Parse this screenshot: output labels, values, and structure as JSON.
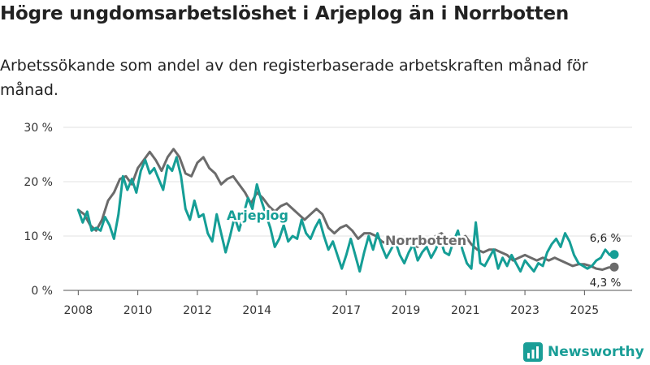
{
  "title": "Högre ungdomsarbetslöshet i Arjeplog än i Norrbotten",
  "subtitle": "Arbetssökande som andel av den registerbaserade arbetskraften månad för månad.",
  "brand": {
    "name": "Newsworthy",
    "icon": "newsworthy-logo-icon",
    "color": "#1a9e97"
  },
  "chart_data": {
    "type": "line",
    "title": "Högre ungdomsarbetslöshet i Arjeplog än i Norrbotten",
    "xlabel": "",
    "ylabel": "",
    "ylim": [
      0,
      30
    ],
    "xlim": [
      2007.5,
      2026.6
    ],
    "yticks": [
      0,
      10,
      20,
      30
    ],
    "ytick_labels": [
      "0 %",
      "10 %",
      "20 %",
      "30 %"
    ],
    "xticks": [
      2008,
      2010,
      2012,
      2014,
      2017,
      2019,
      2021,
      2023,
      2025
    ],
    "xtick_labels": [
      "2008",
      "2010",
      "2012",
      "2014",
      "2017",
      "2019",
      "2021",
      "2023",
      "2025"
    ],
    "grid": true,
    "series": [
      {
        "name": "Norrbotten",
        "color": "#6b6b6b",
        "label_text": "Norrbotten",
        "end_label": "4,3 %",
        "points": [
          [
            2008.0,
            14.8
          ],
          [
            2008.2,
            14.0
          ],
          [
            2008.4,
            12.0
          ],
          [
            2008.6,
            11.0
          ],
          [
            2008.8,
            13.0
          ],
          [
            2009.0,
            16.5
          ],
          [
            2009.2,
            18.0
          ],
          [
            2009.4,
            20.5
          ],
          [
            2009.6,
            21.0
          ],
          [
            2009.8,
            19.5
          ],
          [
            2010.0,
            22.5
          ],
          [
            2010.2,
            24.0
          ],
          [
            2010.4,
            25.5
          ],
          [
            2010.6,
            24.0
          ],
          [
            2010.8,
            22.0
          ],
          [
            2011.0,
            24.5
          ],
          [
            2011.2,
            26.0
          ],
          [
            2011.4,
            24.5
          ],
          [
            2011.6,
            21.5
          ],
          [
            2011.8,
            21.0
          ],
          [
            2012.0,
            23.5
          ],
          [
            2012.2,
            24.5
          ],
          [
            2012.4,
            22.5
          ],
          [
            2012.6,
            21.5
          ],
          [
            2012.8,
            19.5
          ],
          [
            2013.0,
            20.5
          ],
          [
            2013.2,
            21.0
          ],
          [
            2013.4,
            19.5
          ],
          [
            2013.6,
            18.0
          ],
          [
            2013.8,
            16.0
          ],
          [
            2014.0,
            18.0
          ],
          [
            2014.2,
            17.0
          ],
          [
            2014.4,
            15.5
          ],
          [
            2014.6,
            14.5
          ],
          [
            2014.8,
            15.5
          ],
          [
            2015.0,
            16.0
          ],
          [
            2015.2,
            15.0
          ],
          [
            2015.4,
            14.0
          ],
          [
            2015.6,
            13.0
          ],
          [
            2015.8,
            14.0
          ],
          [
            2016.0,
            15.0
          ],
          [
            2016.2,
            14.0
          ],
          [
            2016.4,
            11.5
          ],
          [
            2016.6,
            10.5
          ],
          [
            2016.8,
            11.5
          ],
          [
            2017.0,
            12.0
          ],
          [
            2017.2,
            11.0
          ],
          [
            2017.4,
            9.5
          ],
          [
            2017.6,
            10.5
          ],
          [
            2017.8,
            10.5
          ],
          [
            2018.0,
            10.0
          ],
          [
            2018.2,
            9.0
          ],
          [
            2018.4,
            8.5
          ],
          [
            2018.6,
            9.5
          ],
          [
            2018.8,
            9.0
          ],
          [
            2019.0,
            9.5
          ],
          [
            2019.2,
            8.5
          ],
          [
            2019.4,
            8.0
          ],
          [
            2019.6,
            9.0
          ],
          [
            2019.8,
            8.5
          ],
          [
            2020.0,
            10.0
          ],
          [
            2020.2,
            10.5
          ],
          [
            2020.4,
            9.5
          ],
          [
            2020.6,
            8.5
          ],
          [
            2020.8,
            9.5
          ],
          [
            2021.0,
            10.0
          ],
          [
            2021.2,
            8.5
          ],
          [
            2021.4,
            7.5
          ],
          [
            2021.6,
            7.0
          ],
          [
            2021.8,
            7.5
          ],
          [
            2022.0,
            7.5
          ],
          [
            2022.2,
            7.0
          ],
          [
            2022.4,
            6.5
          ],
          [
            2022.6,
            5.5
          ],
          [
            2022.8,
            6.0
          ],
          [
            2023.0,
            6.5
          ],
          [
            2023.2,
            6.0
          ],
          [
            2023.4,
            5.5
          ],
          [
            2023.6,
            6.0
          ],
          [
            2023.8,
            5.5
          ],
          [
            2024.0,
            6.0
          ],
          [
            2024.2,
            5.5
          ],
          [
            2024.4,
            5.0
          ],
          [
            2024.6,
            4.5
          ],
          [
            2024.8,
            4.8
          ],
          [
            2025.0,
            4.8
          ],
          [
            2025.2,
            4.5
          ],
          [
            2025.4,
            4.0
          ],
          [
            2025.6,
            3.8
          ],
          [
            2025.8,
            4.2
          ],
          [
            2026.0,
            4.3
          ]
        ]
      },
      {
        "name": "Arjeplog",
        "color": "#159e96",
        "label_text": "Arjeplog",
        "end_label": "6,6 %",
        "points": [
          [
            2008.0,
            14.8
          ],
          [
            2008.15,
            12.5
          ],
          [
            2008.3,
            14.5
          ],
          [
            2008.45,
            11.0
          ],
          [
            2008.6,
            11.5
          ],
          [
            2008.75,
            11.0
          ],
          [
            2008.9,
            13.5
          ],
          [
            2009.05,
            12.0
          ],
          [
            2009.2,
            9.5
          ],
          [
            2009.35,
            14.0
          ],
          [
            2009.5,
            21.0
          ],
          [
            2009.65,
            18.5
          ],
          [
            2009.8,
            20.5
          ],
          [
            2009.95,
            18.0
          ],
          [
            2010.1,
            22.0
          ],
          [
            2010.25,
            24.0
          ],
          [
            2010.4,
            21.5
          ],
          [
            2010.55,
            22.5
          ],
          [
            2010.7,
            20.5
          ],
          [
            2010.85,
            18.5
          ],
          [
            2011.0,
            23.0
          ],
          [
            2011.15,
            22.0
          ],
          [
            2011.3,
            24.5
          ],
          [
            2011.45,
            21.0
          ],
          [
            2011.6,
            15.0
          ],
          [
            2011.75,
            13.0
          ],
          [
            2011.9,
            16.5
          ],
          [
            2012.05,
            13.5
          ],
          [
            2012.2,
            14.0
          ],
          [
            2012.35,
            10.5
          ],
          [
            2012.5,
            9.0
          ],
          [
            2012.65,
            14.0
          ],
          [
            2012.8,
            10.5
          ],
          [
            2012.95,
            7.0
          ],
          [
            2013.1,
            10.0
          ],
          [
            2013.25,
            13.5
          ],
          [
            2013.4,
            11.0
          ],
          [
            2013.55,
            14.0
          ],
          [
            2013.7,
            17.0
          ],
          [
            2013.85,
            15.0
          ],
          [
            2014.0,
            19.5
          ],
          [
            2014.15,
            16.5
          ],
          [
            2014.3,
            14.0
          ],
          [
            2014.45,
            11.5
          ],
          [
            2014.6,
            8.0
          ],
          [
            2014.75,
            9.5
          ],
          [
            2014.9,
            12.0
          ],
          [
            2015.05,
            9.0
          ],
          [
            2015.2,
            10.0
          ],
          [
            2015.35,
            9.5
          ],
          [
            2015.5,
            13.0
          ],
          [
            2015.65,
            10.5
          ],
          [
            2015.8,
            9.5
          ],
          [
            2015.95,
            11.5
          ],
          [
            2016.1,
            13.0
          ],
          [
            2016.25,
            10.0
          ],
          [
            2016.4,
            7.5
          ],
          [
            2016.55,
            9.0
          ],
          [
            2016.7,
            6.5
          ],
          [
            2016.85,
            4.0
          ],
          [
            2017.0,
            6.5
          ],
          [
            2017.15,
            9.5
          ],
          [
            2017.3,
            6.5
          ],
          [
            2017.45,
            3.5
          ],
          [
            2017.6,
            7.0
          ],
          [
            2017.75,
            10.0
          ],
          [
            2017.9,
            7.5
          ],
          [
            2018.05,
            10.5
          ],
          [
            2018.2,
            8.0
          ],
          [
            2018.35,
            6.0
          ],
          [
            2018.5,
            7.5
          ],
          [
            2018.65,
            9.0
          ],
          [
            2018.8,
            6.5
          ],
          [
            2018.95,
            5.0
          ],
          [
            2019.1,
            7.0
          ],
          [
            2019.25,
            8.5
          ],
          [
            2019.4,
            5.5
          ],
          [
            2019.55,
            7.0
          ],
          [
            2019.7,
            8.0
          ],
          [
            2019.85,
            6.0
          ],
          [
            2020.0,
            7.5
          ],
          [
            2020.15,
            9.5
          ],
          [
            2020.3,
            7.0
          ],
          [
            2020.45,
            6.5
          ],
          [
            2020.6,
            9.0
          ],
          [
            2020.75,
            11.0
          ],
          [
            2020.9,
            7.5
          ],
          [
            2021.05,
            5.0
          ],
          [
            2021.2,
            4.0
          ],
          [
            2021.35,
            12.5
          ],
          [
            2021.5,
            5.0
          ],
          [
            2021.65,
            4.5
          ],
          [
            2021.8,
            6.0
          ],
          [
            2021.95,
            7.5
          ],
          [
            2022.1,
            4.0
          ],
          [
            2022.25,
            6.0
          ],
          [
            2022.4,
            4.5
          ],
          [
            2022.55,
            6.5
          ],
          [
            2022.7,
            5.0
          ],
          [
            2022.85,
            3.5
          ],
          [
            2023.0,
            5.5
          ],
          [
            2023.15,
            4.5
          ],
          [
            2023.3,
            3.5
          ],
          [
            2023.45,
            5.0
          ],
          [
            2023.6,
            4.5
          ],
          [
            2023.75,
            7.0
          ],
          [
            2023.9,
            8.5
          ],
          [
            2024.05,
            9.5
          ],
          [
            2024.2,
            8.0
          ],
          [
            2024.35,
            10.5
          ],
          [
            2024.5,
            9.0
          ],
          [
            2024.65,
            6.5
          ],
          [
            2024.8,
            5.0
          ],
          [
            2024.95,
            4.5
          ],
          [
            2025.1,
            4.0
          ],
          [
            2025.25,
            4.5
          ],
          [
            2025.4,
            5.5
          ],
          [
            2025.55,
            6.0
          ],
          [
            2025.7,
            7.5
          ],
          [
            2025.85,
            6.5
          ],
          [
            2026.0,
            6.6
          ]
        ]
      }
    ]
  }
}
